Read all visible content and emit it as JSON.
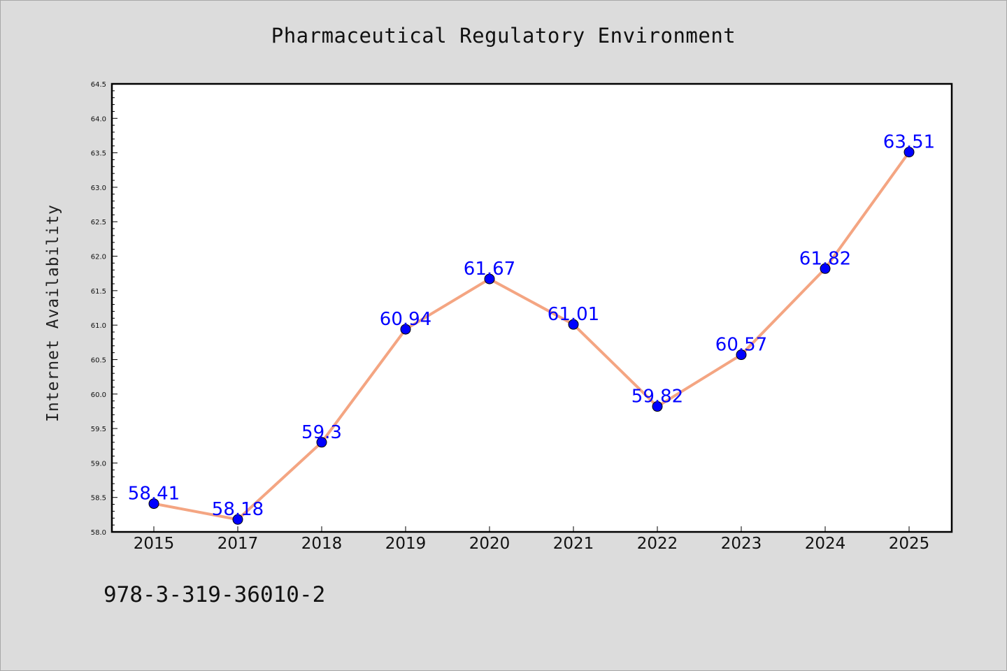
{
  "page": {
    "background": "#dcdcdc",
    "identifier_text": "978-3-319-36010-2"
  },
  "chart_data": {
    "type": "line",
    "title": "Pharmaceutical Regulatory Environment",
    "xlabel": "",
    "ylabel": "Internet Availability",
    "categories": [
      "2015",
      "2017",
      "2018",
      "2019",
      "2020",
      "2021",
      "2022",
      "2023",
      "2024",
      "2025"
    ],
    "series": [
      {
        "values": [
          58.41,
          58.18,
          59.3,
          60.94,
          61.67,
          61.01,
          59.82,
          60.57,
          61.82,
          63.51
        ],
        "data_labels": [
          "58.41",
          "58.18",
          "59.3",
          "60.94",
          "61.67",
          "61.01",
          "59.82",
          "60.57",
          "61.82",
          "63.51"
        ],
        "line_color": "#f4a582",
        "marker_color": "#0000ff"
      }
    ],
    "ylim": [
      58.0,
      64.5
    ],
    "y_major_ticks": [
      "58.0",
      "58.5",
      "59.0",
      "59.5",
      "60.0",
      "60.5",
      "61.0",
      "61.5",
      "62.0",
      "62.5",
      "63.0",
      "63.5",
      "64.0",
      "64.5"
    ],
    "y_minor_step": 0.1,
    "grid": false,
    "legend": "none",
    "plot_background": "#ffffff",
    "label_color": "#0000ff"
  }
}
